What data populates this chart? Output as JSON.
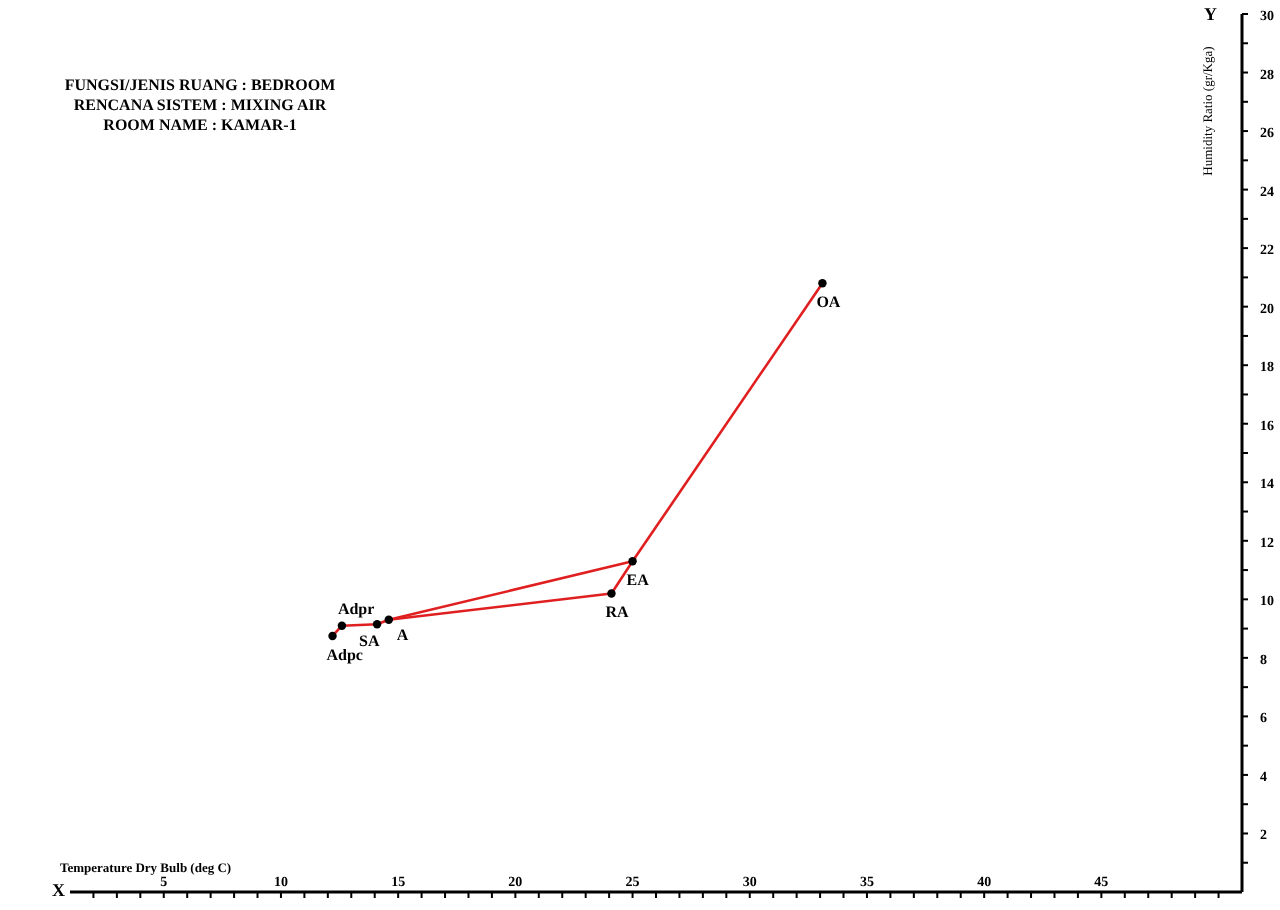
{
  "chart_data": {
    "type": "scatter",
    "title": "FUNGSI/JENIS RUANG : BEDROOM",
    "subtitle": "RENCANA SISTEM : MIXING AIR\nROOM NAME : KAMAR-1",
    "xlabel": "Temperature Dry Bulb (deg C)",
    "ylabel": "Humidity Ratio (gr/Kga)",
    "series": [
      {
        "type": "line",
        "marker": "none",
        "color": "#e02020",
        "x": [
          12.2,
          12.6,
          14.1,
          14.6,
          25.0,
          33.1
        ],
        "values": [
          8.75,
          9.1,
          9.15,
          9.3,
          11.3,
          20.8
        ]
      },
      {
        "type": "line",
        "marker": "none",
        "color": "#e02020",
        "x": [
          14.6,
          24.1,
          25.0
        ],
        "values": [
          9.3,
          10.2,
          11.3
        ]
      },
      {
        "color": "#000000",
        "x": [
          33.1,
          25.0,
          24.1,
          14.6,
          14.1,
          12.6,
          12.2
        ],
        "values": [
          20.8,
          11.3,
          10.2,
          9.3,
          9.15,
          9.1,
          8.75
        ]
      }
    ],
    "marker": "circle",
    "annotations": [
      {
        "text": "OA",
        "x": 33.1,
        "y": 20.8
      },
      {
        "text": "EA",
        "x": 25.0,
        "y": 11.3
      },
      {
        "text": "RA",
        "x": 24.1,
        "y": 10.2
      },
      {
        "text": "A",
        "x": 14.6,
        "y": 9.3
      },
      {
        "text": "SA",
        "x": 14.1,
        "y": 9.15
      },
      {
        "text": "Adpr",
        "x": 12.6,
        "y": 9.1
      },
      {
        "text": "Adpc",
        "x": 12.2,
        "y": 8.75
      },
      "X",
      "Y"
    ],
    "xlim": [
      1,
      51
    ],
    "xticks": [
      {
        "value": 2,
        "label": null
      },
      {
        "value": 3,
        "label": null
      },
      {
        "value": 4,
        "label": null
      },
      5,
      {
        "value": 6,
        "label": null
      },
      {
        "value": 7,
        "label": null
      },
      {
        "value": 8,
        "label": null
      },
      {
        "value": 9,
        "label": null
      },
      10,
      {
        "value": 11,
        "label": null
      },
      {
        "value": 12,
        "label": null
      },
      {
        "value": 13,
        "label": null
      },
      {
        "value": 14,
        "label": null
      },
      15,
      {
        "value": 16,
        "label": null
      },
      {
        "value": 17,
        "label": null
      },
      {
        "value": 18,
        "label": null
      },
      {
        "value": 19,
        "label": null
      },
      20,
      {
        "value": 21,
        "label": null
      },
      {
        "value": 22,
        "label": null
      },
      {
        "value": 23,
        "label": null
      },
      {
        "value": 24,
        "label": null
      },
      25,
      {
        "value": 26,
        "label": null
      },
      {
        "value": 27,
        "label": null
      },
      {
        "value": 28,
        "label": null
      },
      {
        "value": 29,
        "label": null
      },
      30,
      {
        "value": 31,
        "label": null
      },
      {
        "value": 32,
        "label": null
      },
      {
        "value": 33,
        "label": null
      },
      {
        "value": 34,
        "label": null
      },
      35,
      {
        "value": 36,
        "label": null
      },
      {
        "value": 37,
        "label": null
      },
      {
        "value": 38,
        "label": null
      },
      {
        "value": 39,
        "label": null
      },
      40,
      {
        "value": 41,
        "label": null
      },
      {
        "value": 42,
        "label": null
      },
      {
        "value": 43,
        "label": null
      },
      {
        "value": 44,
        "label": null
      },
      45,
      {
        "value": 46,
        "label": null
      },
      {
        "value": 47,
        "label": null
      },
      {
        "value": 48,
        "label": null
      },
      {
        "value": 49,
        "label": null
      },
      {
        "value": 50,
        "label": null
      }
    ],
    "ylim": [
      0,
      30
    ],
    "yticks": [
      {
        "value": 1,
        "label": null
      },
      2,
      {
        "value": 3,
        "label": null
      },
      4,
      {
        "value": 5,
        "label": null
      },
      6,
      {
        "value": 7,
        "label": null
      },
      8,
      {
        "value": 9,
        "label": null
      },
      10,
      {
        "value": 11,
        "label": null
      },
      12,
      {
        "value": 13,
        "label": null
      },
      14,
      {
        "value": 15,
        "label": null
      },
      16,
      {
        "value": 17,
        "label": null
      },
      18,
      {
        "value": 19,
        "label": null
      },
      20,
      {
        "value": 21,
        "label": null
      },
      22,
      {
        "value": 23,
        "label": null
      },
      24,
      {
        "value": 25,
        "label": null
      },
      26,
      {
        "value": 27,
        "label": null
      },
      28,
      {
        "value": 29,
        "label": null
      },
      30
    ],
    "grid": false
  }
}
